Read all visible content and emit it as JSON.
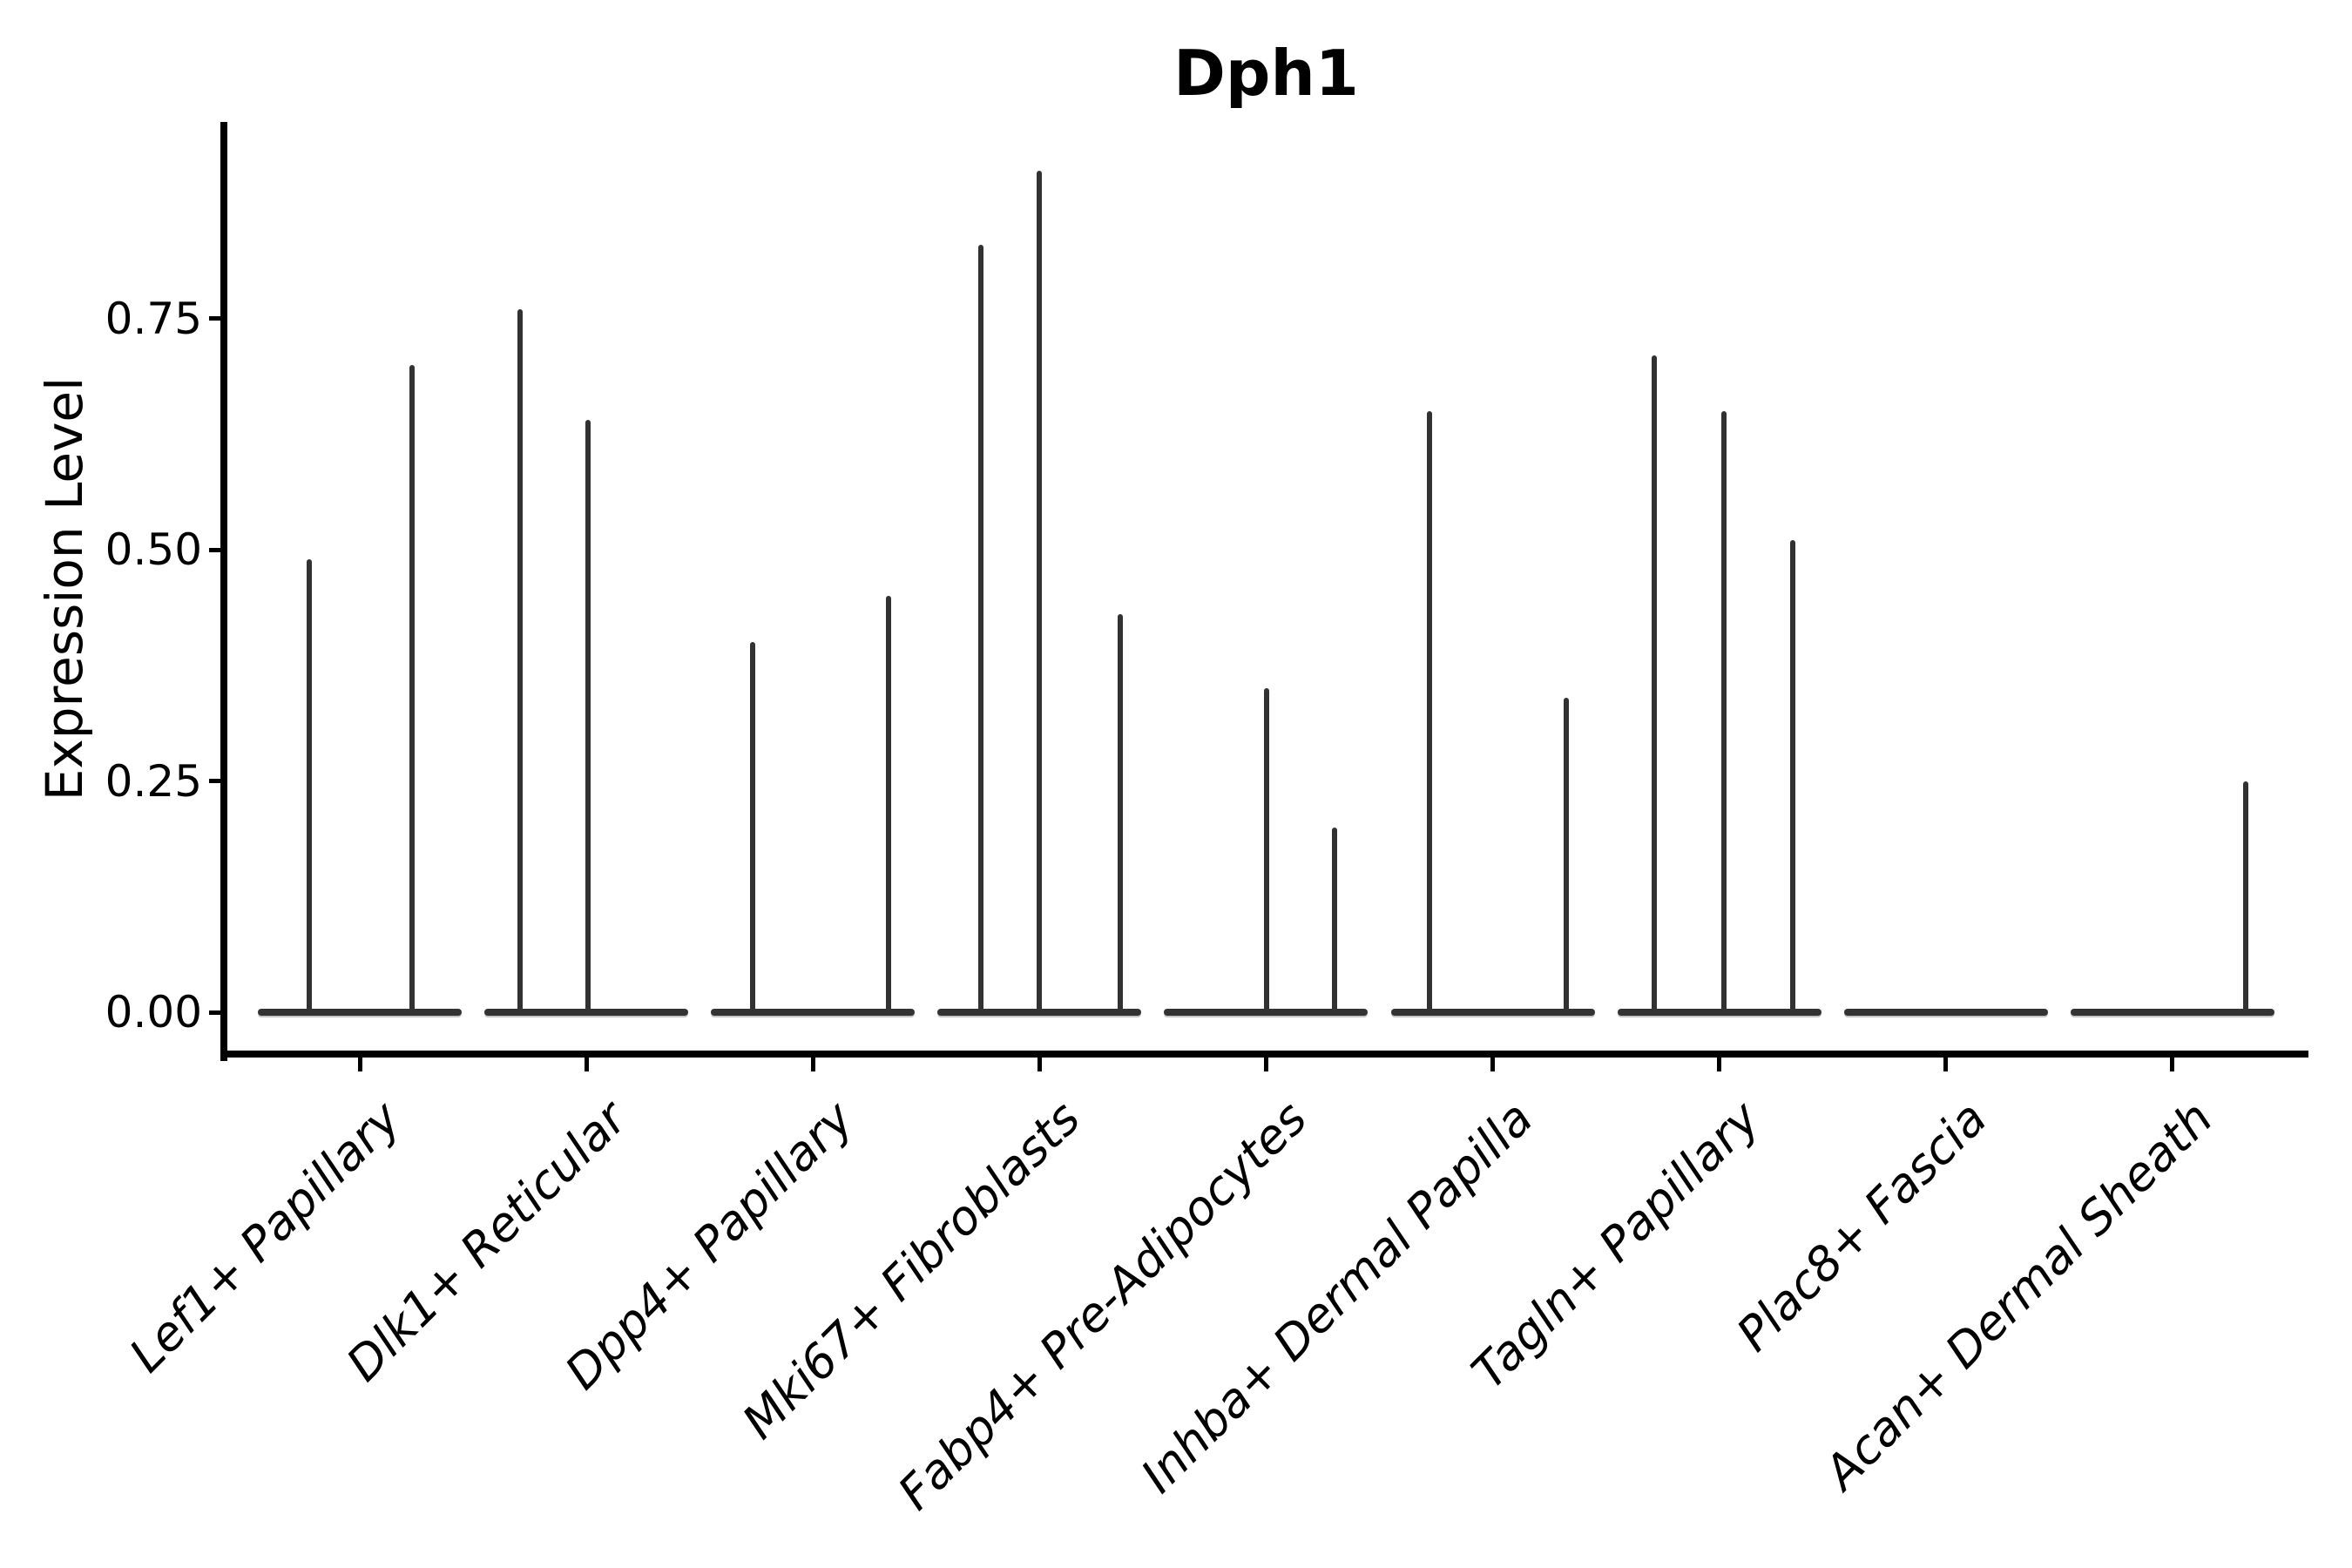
{
  "chart_data": {
    "type": "violin",
    "title": "Dph1",
    "ylabel": "Expression Level",
    "xlabel": "",
    "ylim": [
      -0.04,
      0.96
    ],
    "grid": false,
    "legend": "none",
    "background": "#ffffff",
    "colors": {
      "violin": "#333333",
      "axis": "#000000",
      "text": "#000000"
    },
    "y_ticks": [
      {
        "value": 0.0,
        "label": "0.00"
      },
      {
        "value": 0.25,
        "label": "0.25"
      },
      {
        "value": 0.5,
        "label": "0.50"
      },
      {
        "value": 0.75,
        "label": "0.75"
      }
    ],
    "categories": [
      {
        "label": "Lef1+ Papillary",
        "spikes": [
          {
            "dx": -58,
            "value": 0.49
          },
          {
            "dx": 60,
            "value": 0.7
          }
        ]
      },
      {
        "label": "Dlk1+ Reticular",
        "spikes": [
          {
            "dx": -76,
            "value": 0.76
          },
          {
            "dx": 2,
            "value": 0.64
          }
        ]
      },
      {
        "label": "Dpp4+ Papillary",
        "spikes": [
          {
            "dx": -69,
            "value": 0.4
          },
          {
            "dx": 87,
            "value": 0.45
          }
        ]
      },
      {
        "label": "Mki67+ Fibroblasts",
        "spikes": [
          {
            "dx": -67,
            "value": 0.83
          },
          {
            "dx": 0,
            "value": 0.91
          },
          {
            "dx": 93,
            "value": 0.43
          }
        ]
      },
      {
        "label": "Fabp4+ Pre-Adipocytes",
        "spikes": [
          {
            "dx": 1,
            "value": 0.35
          },
          {
            "dx": 79,
            "value": 0.2
          }
        ]
      },
      {
        "label": "Inhba+ Dermal Papilla",
        "spikes": [
          {
            "dx": -73,
            "value": 0.65
          },
          {
            "dx": 84,
            "value": 0.34
          }
        ]
      },
      {
        "label": "Tagln+ Papillary",
        "spikes": [
          {
            "dx": -75,
            "value": 0.71
          },
          {
            "dx": 5,
            "value": 0.65
          },
          {
            "dx": 84,
            "value": 0.51
          }
        ]
      },
      {
        "label": "Plac8+ Fascia",
        "spikes": []
      },
      {
        "label": "Acan+ Dermal Sheath",
        "spikes": [
          {
            "dx": 84,
            "value": 0.25
          }
        ]
      }
    ]
  }
}
